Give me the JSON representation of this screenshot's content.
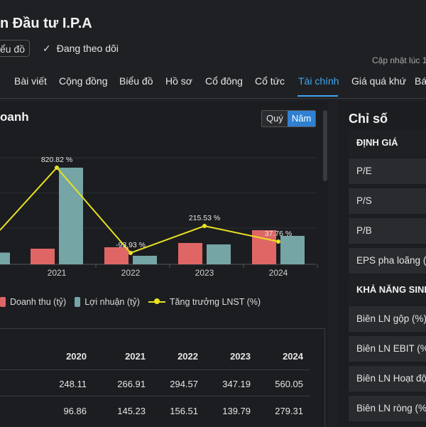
{
  "header": {
    "title": "n Đầu tư I.P.A",
    "chart_button_label": "iểu đồ",
    "follow_check": "✓",
    "follow_label": "Đang theo dõi",
    "updated_label": "Cập nhật lúc  1"
  },
  "tabs": [
    {
      "label": "Bài viết"
    },
    {
      "label": "Cộng đồng"
    },
    {
      "label": "Biểu đồ"
    },
    {
      "label": "Hồ sơ"
    },
    {
      "label": "Cổ đông"
    },
    {
      "label": "Cổ tức"
    },
    {
      "label": "Tài chính"
    },
    {
      "label": "Giá quá khứ"
    },
    {
      "label": "Bá"
    }
  ],
  "panel": {
    "title": "oanh",
    "toggle_quarter": "Quý",
    "toggle_year": "Năm"
  },
  "legend": {
    "revenue": "Doanh thu (tỷ)",
    "profit": "Lợi nhuận (tỷ)",
    "growth": "Tăng trưởng LNST (%)"
  },
  "chart_data": {
    "type": "bar",
    "categories": [
      "2021",
      "2022",
      "2023",
      "2024"
    ],
    "series": [
      {
        "name": "Doanh thu (tỷ)",
        "values": [
          266.91,
          294.57,
          347.19,
          560.05
        ],
        "color": "#e06666"
      },
      {
        "name": "Lợi nhuận (tỷ)",
        "values": [
          145.23,
          156.51,
          139.79,
          279.31
        ],
        "color": "#76a5a5"
      }
    ],
    "growth": {
      "name": "Tăng trưởng LNST (%)",
      "values": [
        820.82,
        -93.93,
        215.53,
        37.76
      ],
      "labels": [
        "820.82 %",
        "-93.93 %",
        "215.53 %",
        "37.76 %"
      ],
      "color": "#e8e220"
    },
    "partial_prev_bar": {
      "series": "Lợi nhuận (tỷ)",
      "height_fraction": 0.11
    }
  },
  "table": {
    "years": [
      "2020",
      "2021",
      "2022",
      "2023",
      "2024"
    ],
    "rows": [
      {
        "values": [
          "248.11",
          "266.91",
          "294.57",
          "347.19",
          "560.05"
        ]
      },
      {
        "values": [
          "96.86",
          "145.23",
          "156.51",
          "139.79",
          "279.31"
        ]
      }
    ]
  },
  "sidebar": {
    "title": "Chỉ số",
    "section1": "ĐỊNH GIÁ",
    "items1": [
      "P/E",
      "P/S",
      "P/B",
      "EPS pha loãng (đ)"
    ],
    "section2": "KHẢ NĂNG SINH LỜI",
    "items2": [
      "Biên LN gộp (%)",
      "Biên LN EBIT (%)",
      "Biên LN Hoạt động (%)",
      "Biên LN ròng (%)"
    ]
  }
}
